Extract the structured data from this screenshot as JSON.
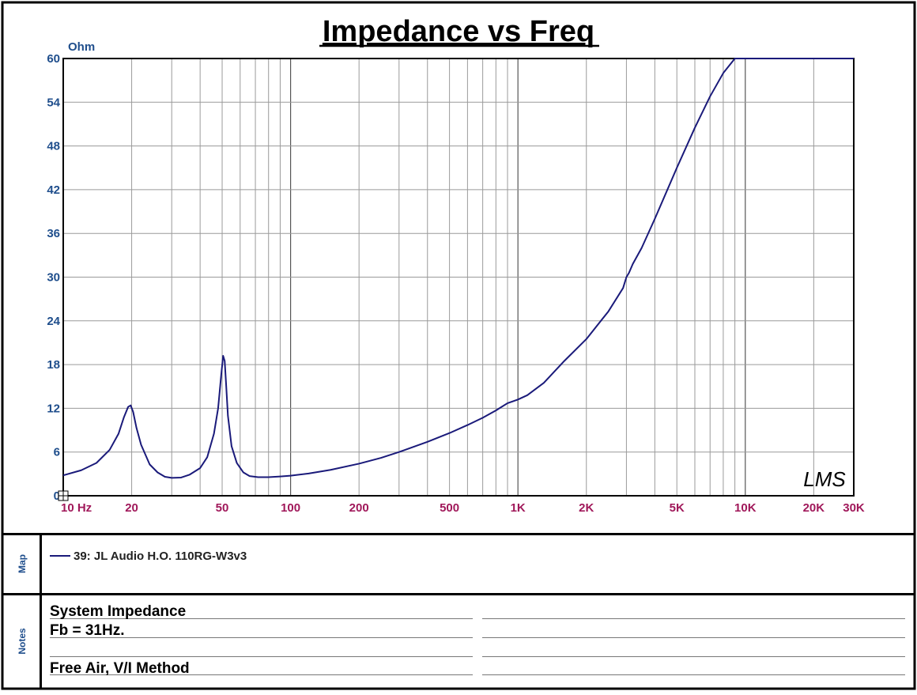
{
  "chart_data": {
    "type": "line",
    "title": "Impedance vs Freq",
    "ylabel": "Ohm",
    "xlabel": "",
    "x_scale": "log",
    "xlim": [
      10,
      30000
    ],
    "ylim": [
      0,
      60
    ],
    "y_ticks": [
      0,
      6,
      12,
      18,
      24,
      30,
      36,
      42,
      48,
      54,
      60
    ],
    "x_ticks": [
      {
        "value": 10,
        "label": "10 Hz"
      },
      {
        "value": 20,
        "label": "20"
      },
      {
        "value": 50,
        "label": "50"
      },
      {
        "value": 100,
        "label": "100"
      },
      {
        "value": 200,
        "label": "200"
      },
      {
        "value": 500,
        "label": "500"
      },
      {
        "value": 1000,
        "label": "1K"
      },
      {
        "value": 2000,
        "label": "2K"
      },
      {
        "value": 5000,
        "label": "5K"
      },
      {
        "value": 10000,
        "label": "10K"
      },
      {
        "value": 20000,
        "label": "20K"
      },
      {
        "value": 30000,
        "label": "30K"
      }
    ],
    "grid": true,
    "series": [
      {
        "name": "39: JL Audio H.O. 110RG-W3v3",
        "color": "#1a1a7a",
        "x": [
          10,
          12,
          14,
          16,
          17.5,
          18.5,
          19.3,
          19.8,
          20.3,
          21,
          22,
          24,
          26,
          28,
          30,
          33,
          36,
          40,
          43,
          46,
          48,
          49.5,
          50.5,
          51.3,
          52,
          53,
          55,
          58,
          62,
          66,
          72,
          80,
          90,
          100,
          120,
          150,
          200,
          250,
          300,
          400,
          500,
          600,
          700,
          800,
          900,
          1000,
          1100,
          1300,
          1600,
          2000,
          2500,
          2900,
          3000,
          3080,
          3200,
          3500,
          4000,
          5000,
          6000,
          7000,
          8000,
          9000,
          9500,
          10000,
          12000,
          15000,
          20000,
          25000,
          30000
        ],
        "y": [
          2.8,
          3.5,
          4.5,
          6.3,
          8.5,
          10.8,
          12.2,
          12.4,
          11.5,
          9.3,
          7.0,
          4.3,
          3.2,
          2.6,
          2.45,
          2.5,
          2.9,
          3.8,
          5.3,
          8.5,
          12.0,
          16.5,
          19.2,
          18.5,
          15.5,
          11.0,
          6.8,
          4.5,
          3.2,
          2.7,
          2.55,
          2.55,
          2.65,
          2.75,
          3.05,
          3.55,
          4.4,
          5.2,
          6.0,
          7.4,
          8.6,
          9.7,
          10.7,
          11.7,
          12.7,
          13.2,
          13.8,
          15.5,
          18.5,
          21.5,
          25.3,
          28.5,
          30.0,
          30.6,
          31.8,
          34.0,
          38.0,
          45.0,
          50.5,
          54.8,
          58.0,
          60.0,
          60.0,
          60.0,
          60.0,
          60.0,
          60.0,
          60.0,
          60.0
        ]
      }
    ],
    "legend_placement": "map-box"
  },
  "brand_mark": "LMS",
  "panels": {
    "map_label": "Map",
    "notes_label": "Notes"
  },
  "notes": [
    "System Impedance",
    "Fb = 31Hz.",
    "",
    "Free Air, V/I Method"
  ]
}
